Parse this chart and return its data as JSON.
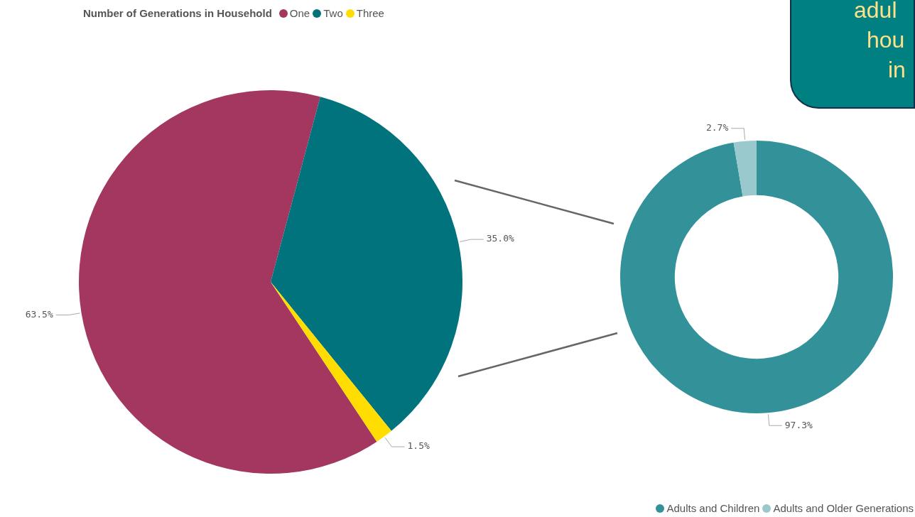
{
  "chart_data": [
    {
      "type": "pie",
      "legend_title": "Number of Generations in Household",
      "legend": "top",
      "categories": [
        "One",
        "Two",
        "Three"
      ],
      "values": [
        63.5,
        35.0,
        1.5
      ],
      "colors": [
        "#a33760",
        "#00737c",
        "#ffdd00"
      ],
      "value_labels": [
        "63.5%",
        "35.0%",
        "1.5%"
      ]
    },
    {
      "type": "donut",
      "legend": "bottom right",
      "categories": [
        "Adults and Children",
        "Adults and Older Generations"
      ],
      "values": [
        97.3,
        2.7
      ],
      "colors": [
        "#33919a",
        "#99c9cc"
      ],
      "value_labels": [
        "97.3%",
        "2.7%"
      ],
      "annotations": [
        "adul",
        "hou",
        "in"
      ]
    }
  ]
}
